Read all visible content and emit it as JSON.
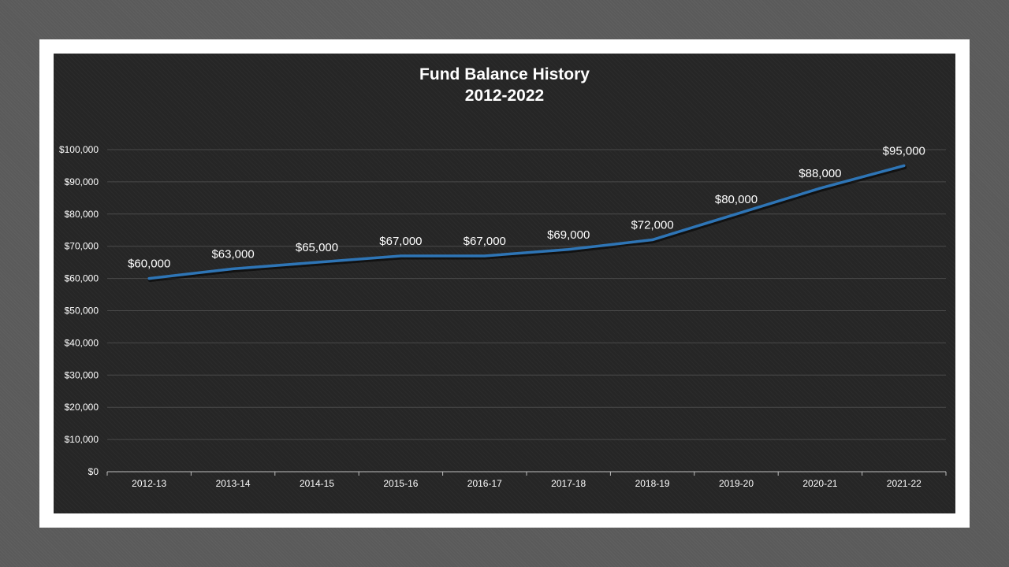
{
  "chart_data": {
    "type": "line",
    "title": "Fund Balance History",
    "subtitle": "2012-2022",
    "xlabel": "",
    "ylabel": "",
    "categories": [
      "2012-13",
      "2013-14",
      "2014-15",
      "2015-16",
      "2016-17",
      "2017-18",
      "2018-19",
      "2019-20",
      "2020-21",
      "2021-22"
    ],
    "series": [
      {
        "values": [
          60000,
          63000,
          65000,
          67000,
          67000,
          69000,
          72000,
          80000,
          88000,
          95000
        ],
        "data_labels": [
          "$60,000",
          "$63,000",
          "$65,000",
          "$67,000",
          "$67,000",
          "$69,000",
          "$72,000",
          "$80,000",
          "$88,000",
          "$95,000"
        ],
        "color": "#2e75b6"
      }
    ],
    "ylim": [
      0,
      100000
    ],
    "yticks": [
      0,
      10000,
      20000,
      30000,
      40000,
      50000,
      60000,
      70000,
      80000,
      90000,
      100000
    ],
    "ytick_labels": [
      "$0",
      "$10,000",
      "$20,000",
      "$30,000",
      "$40,000",
      "$50,000",
      "$60,000",
      "$70,000",
      "$80,000",
      "$90,000",
      "$100,000"
    ],
    "grid": true,
    "legend": "none"
  }
}
